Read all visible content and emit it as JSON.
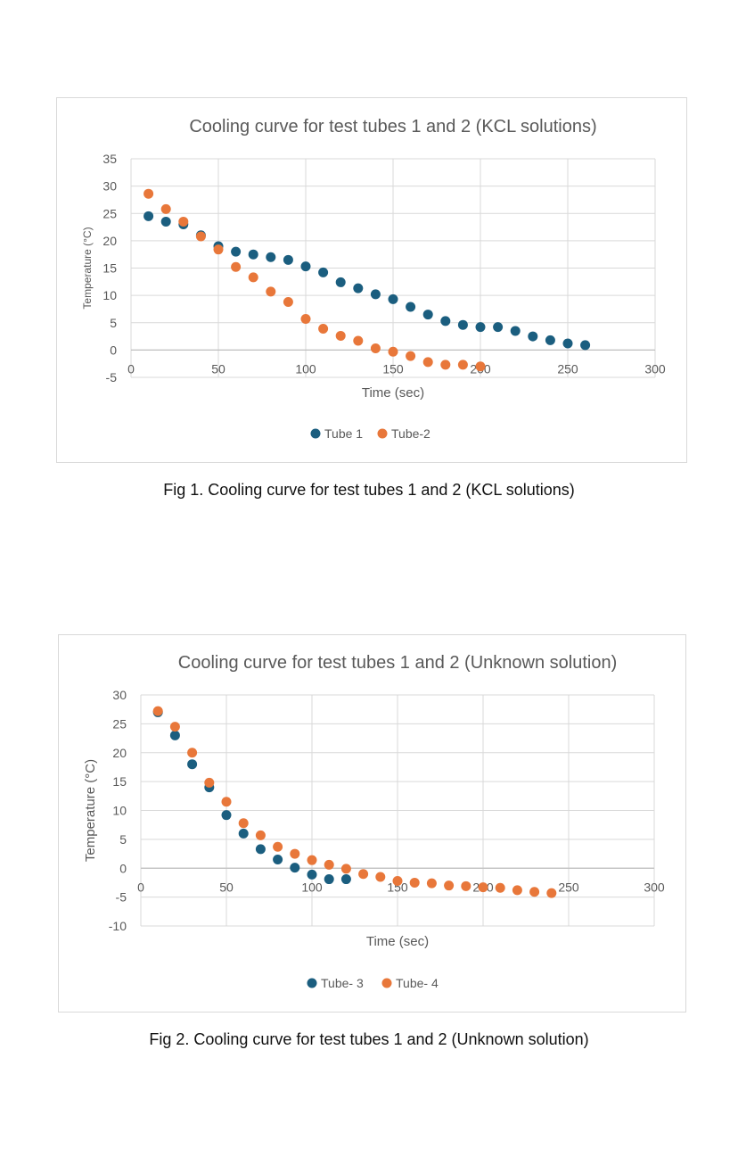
{
  "captions": [
    "Fig 1. Cooling curve for test tubes 1 and 2 (KCL solutions)",
    "Fig 2. Cooling curve for test tubes 1 and 2 (Unknown solution)"
  ],
  "colors": {
    "blue": "#1b5e7f",
    "orange": "#e8773a",
    "grid": "#d9d9d9",
    "text": "#595959"
  },
  "chart_data": [
    {
      "type": "scatter",
      "title": "Cooling curve for test tubes 1 and 2 (KCL solutions)",
      "xlabel": "Time (sec)",
      "ylabel": "Temperature (°C)",
      "xlim": [
        0,
        300
      ],
      "ylim": [
        -5,
        35
      ],
      "xticks": [
        0,
        50,
        100,
        150,
        200,
        250,
        300
      ],
      "yticks": [
        -5,
        0,
        5,
        10,
        15,
        20,
        25,
        30,
        35
      ],
      "legend": "bottom",
      "series": [
        {
          "name": "Tube 1",
          "color": "#1b5e7f",
          "x": [
            10,
            20,
            30,
            40,
            50,
            60,
            70,
            80,
            90,
            100,
            110,
            120,
            130,
            140,
            150,
            160,
            170,
            180,
            190,
            200,
            210,
            220,
            230,
            240,
            250,
            260
          ],
          "y": [
            24.5,
            23.5,
            23,
            21,
            19,
            18,
            17.5,
            17,
            16.5,
            15.3,
            14.2,
            12.4,
            11.3,
            10.2,
            9.3,
            7.9,
            6.5,
            5.3,
            4.6,
            4.2,
            4.2,
            3.5,
            2.5,
            1.8,
            1.2,
            0.9
          ]
        },
        {
          "name": "Tube-2",
          "color": "#e8773a",
          "x": [
            10,
            20,
            30,
            40,
            50,
            60,
            70,
            80,
            90,
            100,
            110,
            120,
            130,
            140,
            150,
            160,
            170,
            180,
            190,
            200
          ],
          "y": [
            28.6,
            25.8,
            23.5,
            20.8,
            18.4,
            15.2,
            13.3,
            10.7,
            8.8,
            5.7,
            3.9,
            2.6,
            1.7,
            0.3,
            -0.3,
            -1.1,
            -2.2,
            -2.7,
            -2.7,
            -3
          ]
        }
      ]
    },
    {
      "type": "scatter",
      "title": "Cooling curve for test tubes 1 and 2 (Unknown solution)",
      "xlabel": "Time (sec)",
      "ylabel": "Temperature (°C)",
      "xlim": [
        0,
        300
      ],
      "ylim": [
        -10,
        30
      ],
      "xticks": [
        0,
        50,
        100,
        150,
        200,
        250,
        300
      ],
      "yticks": [
        -10,
        -5,
        0,
        5,
        10,
        15,
        20,
        25,
        30
      ],
      "legend": "bottom",
      "series": [
        {
          "name": "Tube- 3",
          "color": "#1b5e7f",
          "x": [
            10,
            20,
            30,
            40,
            50,
            60,
            70,
            80,
            90,
            100,
            110,
            120
          ],
          "y": [
            27,
            23,
            18,
            14,
            9.2,
            6,
            3.3,
            1.5,
            0.1,
            -1.1,
            -1.9,
            -1.9
          ]
        },
        {
          "name": "Tube- 4",
          "color": "#e8773a",
          "x": [
            10,
            20,
            30,
            40,
            50,
            60,
            70,
            80,
            90,
            100,
            110,
            120,
            130,
            140,
            150,
            160,
            170,
            180,
            190,
            200,
            210,
            220,
            230,
            240
          ],
          "y": [
            27.2,
            24.5,
            20,
            14.8,
            11.5,
            7.8,
            5.7,
            3.7,
            2.5,
            1.4,
            0.6,
            -0.1,
            -1,
            -1.5,
            -2.2,
            -2.5,
            -2.6,
            -3,
            -3.1,
            -3.3,
            -3.4,
            -3.8,
            -4.1,
            -4.3
          ]
        }
      ]
    }
  ]
}
